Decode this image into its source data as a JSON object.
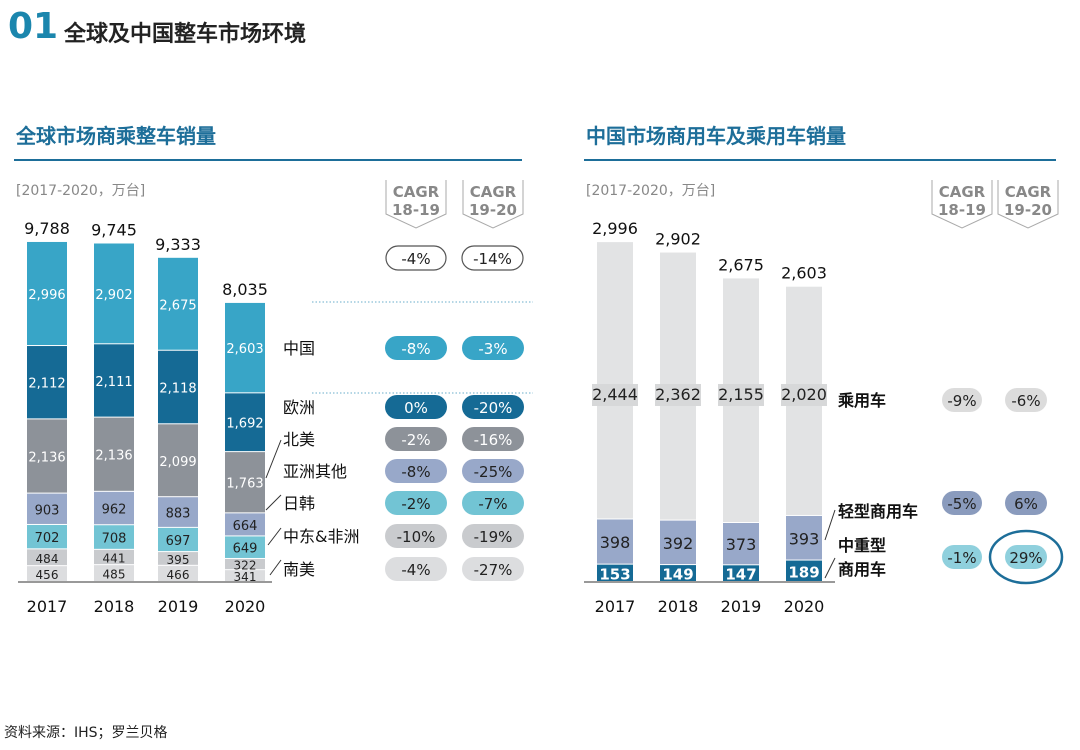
{
  "header": {
    "number": "01",
    "title": "全球及中国整车市场环境"
  },
  "source": "资料来源：IHS；罗兰贝格",
  "colors": {
    "accent": "#1d6e99"
  },
  "chart_data": [
    {
      "type": "bar",
      "stacked": true,
      "title": "全球市场商乘整车销量",
      "unit_label": "[2017-2020，万台]",
      "categories": [
        "2017",
        "2018",
        "2019",
        "2020"
      ],
      "totals": [
        9788,
        9745,
        9333,
        8035
      ],
      "series": [
        {
          "name": "南美",
          "values": [
            456,
            485,
            466,
            341
          ],
          "color": "#dcdddf",
          "text": "#222",
          "cagr": [
            "-4%",
            "-27%"
          ]
        },
        {
          "name": "中东&非洲",
          "values": [
            484,
            441,
            395,
            322
          ],
          "color": "#c9cbce",
          "text": "#222",
          "cagr": [
            "-10%",
            "-19%"
          ]
        },
        {
          "name": "日韩",
          "values": [
            702,
            708,
            697,
            649
          ],
          "color": "#72c4d4",
          "text": "#222",
          "cagr": [
            "-2%",
            "-7%"
          ]
        },
        {
          "name": "亚洲其他",
          "values": [
            903,
            962,
            883,
            664
          ],
          "color": "#98a8c9",
          "text": "#222",
          "cagr": [
            "-8%",
            "-25%"
          ]
        },
        {
          "name": "北美",
          "values": [
            2136,
            2136,
            2099,
            1763
          ],
          "color": "#8d9299",
          "text": "#fff",
          "cagr": [
            "-2%",
            "-16%"
          ]
        },
        {
          "name": "欧洲",
          "values": [
            2112,
            2111,
            2118,
            1692
          ],
          "color": "#156a95",
          "text": "#fff",
          "cagr": [
            "0%",
            "-20%"
          ]
        },
        {
          "name": "中国",
          "values": [
            2996,
            2902,
            2675,
            2603
          ],
          "color": "#38a5c7",
          "text": "#fff",
          "cagr": [
            "-8%",
            "-3%"
          ]
        }
      ],
      "cagr_headers": [
        "CAGR\n18-19",
        "CAGR\n19-20"
      ],
      "cagr_total": [
        "-4%",
        "-14%"
      ]
    },
    {
      "type": "bar",
      "stacked": true,
      "title": "中国市场商用车及乘用车销量",
      "unit_label": "[2017-2020，万台]",
      "categories": [
        "2017",
        "2018",
        "2019",
        "2020"
      ],
      "totals": [
        2996,
        2902,
        2675,
        2603
      ],
      "series": [
        {
          "name": "中重型\n商用车",
          "values": [
            153,
            149,
            147,
            189
          ],
          "color": "#156a95",
          "text": "#fff",
          "cagr": [
            "-1%",
            "29%"
          ],
          "pill": "#8fd0dd"
        },
        {
          "name": "轻型商用车",
          "values": [
            398,
            392,
            373,
            393
          ],
          "color": "#98a8c9",
          "text": "#222",
          "cagr": [
            "-5%",
            "6%"
          ],
          "pill": "#8a9bbd"
        },
        {
          "name": "乘用车",
          "values": [
            2444,
            2362,
            2155,
            2020
          ],
          "color": "#e2e3e4",
          "text": "#222",
          "cagr": [
            "-9%",
            "-6%"
          ],
          "pill": "#dcdcdc"
        }
      ],
      "cagr_headers": [
        "CAGR\n18-19",
        "CAGR\n19-20"
      ],
      "highlighted": "29%"
    }
  ]
}
